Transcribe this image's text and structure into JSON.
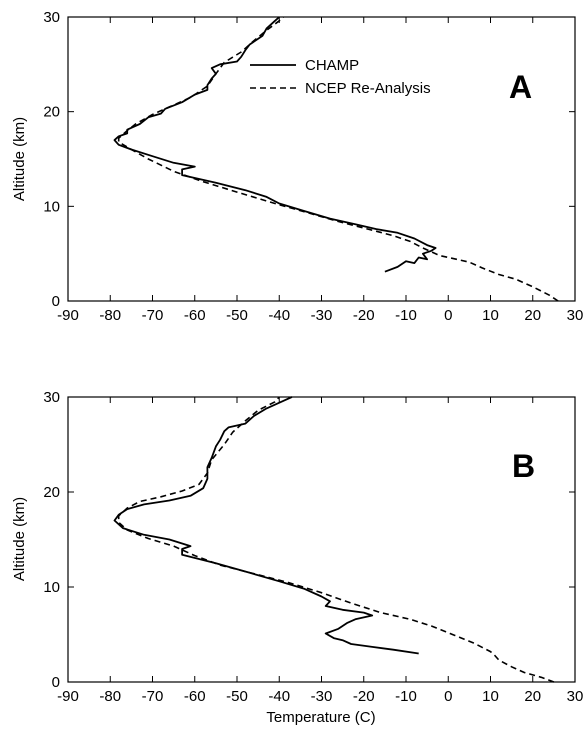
{
  "chart_data": [
    {
      "type": "line",
      "panel_label": "A",
      "xlabel": "",
      "ylabel": "Altitude (km)",
      "xlim": [
        -90,
        30
      ],
      "ylim": [
        0,
        30
      ],
      "xticks": [
        -90,
        -80,
        -70,
        -60,
        -50,
        -40,
        -30,
        -20,
        -10,
        0,
        10,
        20,
        30
      ],
      "yticks": [
        0,
        10,
        20,
        30
      ],
      "legend": "top-right",
      "series": [
        {
          "name": "CHAMP",
          "style": "solid",
          "points": [
            [
              -15,
              3.1
            ],
            [
              -12,
              3.6
            ],
            [
              -10,
              4.2
            ],
            [
              -8,
              4.0
            ],
            [
              -7,
              4.6
            ],
            [
              -5,
              4.4
            ],
            [
              -6,
              5.0
            ],
            [
              -4,
              5.3
            ],
            [
              -3,
              5.6
            ],
            [
              -5,
              5.9
            ],
            [
              -8,
              6.6
            ],
            [
              -12,
              7.2
            ],
            [
              -17,
              7.6
            ],
            [
              -22,
              8.1
            ],
            [
              -28,
              8.7
            ],
            [
              -34,
              9.5
            ],
            [
              -40,
              10.3
            ],
            [
              -43,
              11.0
            ],
            [
              -48,
              11.7
            ],
            [
              -55,
              12.5
            ],
            [
              -63,
              13.3
            ],
            [
              -63,
              13.9
            ],
            [
              -60,
              14.2
            ],
            [
              -65,
              14.6
            ],
            [
              -70,
              15.3
            ],
            [
              -75,
              16.0
            ],
            [
              -78,
              16.5
            ],
            [
              -79,
              17.0
            ],
            [
              -78,
              17.4
            ],
            [
              -76,
              17.7
            ],
            [
              -76,
              18.1
            ],
            [
              -73,
              18.7
            ],
            [
              -71,
              19.4
            ],
            [
              -68,
              19.8
            ],
            [
              -67,
              20.3
            ],
            [
              -63,
              21.0
            ],
            [
              -60,
              21.8
            ],
            [
              -57,
              22.3
            ],
            [
              -57,
              22.8
            ],
            [
              -56,
              23.5
            ],
            [
              -55,
              24.0
            ],
            [
              -56,
              24.6
            ],
            [
              -54,
              25.0
            ],
            [
              -50,
              25.3
            ],
            [
              -49,
              25.8
            ],
            [
              -48,
              26.5
            ],
            [
              -47,
              27.1
            ],
            [
              -44,
              28.0
            ],
            [
              -43,
              28.8
            ],
            [
              -41,
              29.6
            ],
            [
              -40,
              30.0
            ]
          ]
        },
        {
          "name": "NCEP Re-Analysis",
          "style": "dashed",
          "points": [
            [
              26,
              0.0
            ],
            [
              24,
              0.6
            ],
            [
              20,
              1.5
            ],
            [
              16,
              2.3
            ],
            [
              12,
              2.8
            ],
            [
              8,
              3.5
            ],
            [
              5,
              4.1
            ],
            [
              2,
              4.4
            ],
            [
              -2,
              4.8
            ],
            [
              -6,
              5.6
            ],
            [
              -9,
              6.3
            ],
            [
              -13,
              6.9
            ],
            [
              -19,
              7.6
            ],
            [
              -26,
              8.4
            ],
            [
              -33,
              9.3
            ],
            [
              -41,
              10.3
            ],
            [
              -50,
              11.5
            ],
            [
              -58,
              12.6
            ],
            [
              -65,
              13.7
            ],
            [
              -71,
              15.0
            ],
            [
              -75,
              16.0
            ],
            [
              -78,
              16.8
            ],
            [
              -78,
              17.2
            ],
            [
              -76,
              18.0
            ],
            [
              -74,
              18.7
            ],
            [
              -70,
              19.7
            ],
            [
              -66,
              20.5
            ],
            [
              -61,
              21.5
            ],
            [
              -57,
              22.7
            ],
            [
              -55,
              24.0
            ],
            [
              -53,
              25.2
            ],
            [
              -49,
              26.3
            ],
            [
              -46,
              27.5
            ],
            [
              -43,
              28.6
            ],
            [
              -40,
              29.6
            ],
            [
              -39,
              30.0
            ]
          ]
        }
      ]
    },
    {
      "type": "line",
      "panel_label": "B",
      "xlabel": "Temperature (C)",
      "ylabel": "Altitude (km)",
      "xlim": [
        -90,
        30
      ],
      "ylim": [
        0,
        30
      ],
      "xticks": [
        -90,
        -80,
        -70,
        -60,
        -50,
        -40,
        -30,
        -20,
        -10,
        0,
        10,
        20,
        30
      ],
      "yticks": [
        0,
        10,
        20,
        30
      ],
      "series": [
        {
          "name": "CHAMP",
          "style": "solid",
          "points": [
            [
              -7,
              3.0
            ],
            [
              -13,
              3.4
            ],
            [
              -18,
              3.7
            ],
            [
              -23,
              4.0
            ],
            [
              -25,
              4.4
            ],
            [
              -27,
              4.6
            ],
            [
              -29,
              5.1
            ],
            [
              -26,
              5.6
            ],
            [
              -24,
              6.2
            ],
            [
              -22,
              6.6
            ],
            [
              -18,
              7.0
            ],
            [
              -20,
              7.3
            ],
            [
              -25,
              7.6
            ],
            [
              -29,
              8.0
            ],
            [
              -28,
              8.5
            ],
            [
              -30,
              9.0
            ],
            [
              -34,
              9.8
            ],
            [
              -40,
              10.6
            ],
            [
              -47,
              11.5
            ],
            [
              -55,
              12.5
            ],
            [
              -63,
              13.4
            ],
            [
              -63,
              14.0
            ],
            [
              -61,
              14.3
            ],
            [
              -66,
              15.0
            ],
            [
              -72,
              15.5
            ],
            [
              -77,
              16.2
            ],
            [
              -79,
              17.0
            ],
            [
              -78,
              17.6
            ],
            [
              -76,
              18.2
            ],
            [
              -72,
              18.7
            ],
            [
              -66,
              19.1
            ],
            [
              -61,
              19.6
            ],
            [
              -58,
              20.4
            ],
            [
              -57,
              21.4
            ],
            [
              -57,
              22.6
            ],
            [
              -56,
              23.6
            ],
            [
              -55,
              24.8
            ],
            [
              -54,
              25.5
            ],
            [
              -53,
              26.4
            ],
            [
              -52,
              26.8
            ],
            [
              -48,
              27.2
            ],
            [
              -46,
              28.0
            ],
            [
              -43,
              28.8
            ],
            [
              -39,
              29.6
            ],
            [
              -37,
              30.0
            ]
          ]
        },
        {
          "name": "NCEP Re-Analysis",
          "style": "dashed",
          "points": [
            [
              25,
              0.0
            ],
            [
              22,
              0.5
            ],
            [
              18,
              1.0
            ],
            [
              15,
              1.6
            ],
            [
              12,
              2.3
            ],
            [
              11,
              2.8
            ],
            [
              10,
              3.2
            ],
            [
              6,
              4.1
            ],
            [
              1,
              5.0
            ],
            [
              -4,
              5.9
            ],
            [
              -9,
              6.6
            ],
            [
              -16,
              7.3
            ],
            [
              -23,
              8.3
            ],
            [
              -30,
              9.4
            ],
            [
              -38,
              10.5
            ],
            [
              -46,
              11.4
            ],
            [
              -54,
              12.3
            ],
            [
              -60,
              13.3
            ],
            [
              -65,
              14.3
            ],
            [
              -71,
              15.1
            ],
            [
              -76,
              16.0
            ],
            [
              -78,
              16.8
            ],
            [
              -78,
              17.5
            ],
            [
              -76,
              18.3
            ],
            [
              -73,
              19.0
            ],
            [
              -68,
              19.5
            ],
            [
              -63,
              20.1
            ],
            [
              -59,
              20.8
            ],
            [
              -57,
              22.0
            ],
            [
              -56,
              23.4
            ],
            [
              -53,
              25.0
            ],
            [
              -51,
              26.3
            ],
            [
              -48,
              27.5
            ],
            [
              -45,
              28.6
            ],
            [
              -41,
              29.5
            ],
            [
              -40,
              30.0
            ]
          ]
        }
      ]
    }
  ]
}
